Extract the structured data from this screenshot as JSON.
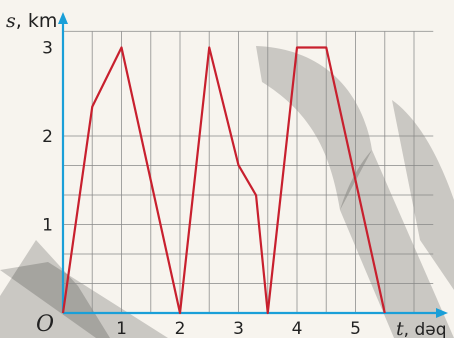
{
  "chart_data": {
    "type": "line",
    "origin_label": "O",
    "xaxis": {
      "var": "t",
      "unit": ", dəq"
    },
    "yaxis": {
      "var": "s",
      "unit": ", km"
    },
    "xlim": [
      0,
      6.5
    ],
    "ylim": [
      0,
      3.25
    ],
    "grid": true,
    "xticks": [
      1,
      2,
      3,
      4,
      5
    ],
    "yticks": [
      1,
      2,
      3
    ],
    "x": [
      0,
      0.5,
      1.0,
      1.5,
      2.0,
      2.5,
      3.0,
      3.3,
      3.5,
      4.0,
      4.5,
      5.0,
      5.5
    ],
    "y": [
      0,
      2.33,
      3.0,
      1.5,
      0,
      3.0,
      1.67,
      1.33,
      0,
      3.0,
      3.0,
      1.5,
      0
    ],
    "colors": {
      "line": "#c8202e",
      "axis": "#1a9fd8",
      "grid": "#888888",
      "watermark": "#000000"
    }
  }
}
